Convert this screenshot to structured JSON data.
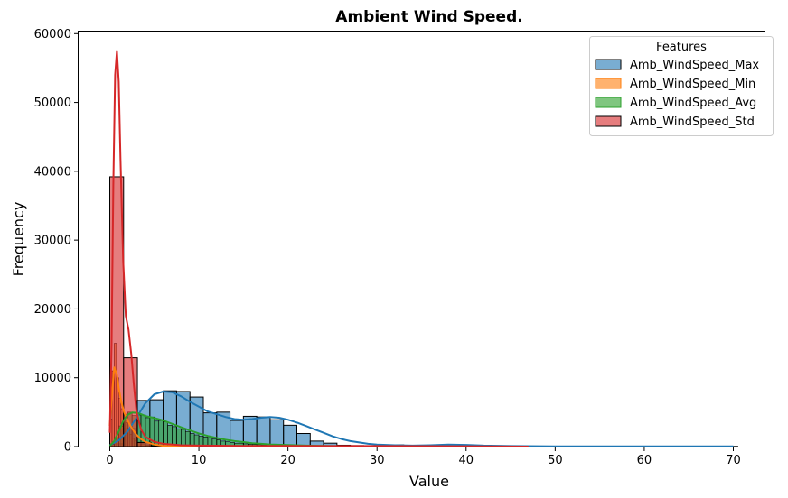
{
  "chart_data": {
    "type": "histogram",
    "title": "Ambient Wind Speed.",
    "xlabel": "Value",
    "ylabel": "Frequency",
    "xlim": [
      -3.5,
      73.5
    ],
    "ylim": [
      0,
      60300
    ],
    "xticks": [
      0,
      10,
      20,
      30,
      40,
      50,
      60,
      70
    ],
    "yticks": [
      0,
      10000,
      20000,
      30000,
      40000,
      50000,
      60000
    ],
    "grid": false,
    "legend": {
      "title": "Features",
      "placement": "top-right"
    },
    "series": [
      {
        "name": "Amb_WindSpeed_Max",
        "color": "#1f77b4",
        "bin_edges": [
          0,
          1.5,
          3.0,
          4.5,
          6.0,
          7.5,
          9.0,
          10.5,
          12.0,
          13.5,
          15.0,
          16.5,
          18.0,
          19.5,
          21.0,
          22.5,
          24.0,
          25.5,
          27.0,
          28.5,
          30.0,
          31.5,
          33.0,
          34.5,
          36.0,
          37.5,
          39.0,
          40.5,
          42.0,
          43.5,
          45.0,
          46.5,
          48.0,
          49.5,
          51.0,
          52.5,
          54.0,
          55.5,
          57.0,
          58.5,
          60.0,
          61.5,
          63.0,
          64.5,
          66.0,
          67.5,
          69.0,
          70.5
        ],
        "counts": [
          400,
          2600,
          6700,
          6800,
          8100,
          8000,
          7200,
          4900,
          5000,
          3800,
          4400,
          4300,
          3900,
          3100,
          1900,
          800,
          500,
          200,
          150,
          120,
          150,
          250,
          180,
          100,
          80,
          60,
          50,
          40,
          30,
          30,
          30,
          30,
          30,
          30,
          30,
          30,
          30,
          30,
          30,
          30,
          30,
          30,
          30,
          30,
          30,
          30,
          30
        ],
        "kde_x": [
          0,
          1,
          2,
          3,
          4,
          5,
          6,
          7,
          8,
          9,
          10,
          11,
          12,
          13,
          14,
          15,
          16,
          17,
          18,
          19,
          20,
          21,
          22,
          23,
          24,
          25,
          26,
          27,
          28,
          29,
          30,
          32,
          34,
          36,
          38,
          40,
          42,
          45,
          50,
          55,
          60,
          65,
          70
        ],
        "kde_y": [
          200,
          900,
          2200,
          4200,
          6300,
          7600,
          8000,
          7900,
          7300,
          6500,
          5800,
          5100,
          4700,
          4300,
          4000,
          3900,
          4000,
          4200,
          4300,
          4200,
          3900,
          3500,
          3000,
          2500,
          2000,
          1500,
          1100,
          800,
          600,
          400,
          300,
          200,
          150,
          200,
          300,
          250,
          150,
          80,
          40,
          30,
          30,
          30,
          30
        ]
      },
      {
        "name": "Amb_WindSpeed_Min",
        "color": "#ff7f0e",
        "bin_edges": [
          0,
          0.25,
          0.5,
          0.75,
          1.0,
          1.25,
          1.5,
          1.75,
          2.0,
          2.25,
          2.5,
          2.75,
          3.0,
          3.5,
          4.0,
          5.0,
          6.0
        ],
        "counts": [
          4000,
          11000,
          15000,
          10000,
          7000,
          5500,
          4500,
          3500,
          2500,
          1800,
          1200,
          900,
          600,
          400,
          200,
          80
        ],
        "kde_x": [
          0,
          0.2,
          0.5,
          0.8,
          1.0,
          1.3,
          1.6,
          2.0,
          2.5,
          3.0,
          3.5,
          4.0,
          5.0,
          6.0,
          8.0,
          10.0
        ],
        "kde_y": [
          3000,
          7000,
          11500,
          10500,
          8500,
          6500,
          5000,
          3800,
          2600,
          1700,
          1100,
          700,
          300,
          120,
          30,
          0
        ]
      },
      {
        "name": "Amb_WindSpeed_Avg",
        "color": "#2ca02c",
        "bin_edges": [
          0,
          0.5,
          1.0,
          1.5,
          2.0,
          2.5,
          3.0,
          3.5,
          4.0,
          4.5,
          5.0,
          5.5,
          6.0,
          6.5,
          7.0,
          7.5,
          8.0,
          8.5,
          9.0,
          9.5,
          10.0,
          10.5,
          11.0,
          11.5,
          12.0,
          12.5,
          13.0,
          13.5,
          14.0,
          14.5,
          15.0,
          15.5,
          16.0,
          16.5,
          17.0,
          17.5,
          18.0,
          18.5,
          19.0,
          19.5,
          20.0,
          21.0,
          22.0,
          23.0,
          24.0,
          25.0,
          26.0
        ],
        "counts": [
          300,
          1300,
          3000,
          4700,
          5000,
          4500,
          4600,
          4600,
          4200,
          4300,
          3700,
          3800,
          3600,
          3100,
          2900,
          2600,
          2500,
          2200,
          1900,
          1700,
          1500,
          1400,
          1300,
          1100,
          1000,
          800,
          700,
          600,
          500,
          500,
          400,
          350,
          300,
          280,
          250,
          220,
          200,
          180,
          150,
          130,
          120,
          100,
          80,
          60,
          50,
          40
        ],
        "kde_x": [
          0,
          0.5,
          1,
          1.5,
          2,
          2.5,
          3,
          3.5,
          4,
          5,
          6,
          7,
          8,
          9,
          10,
          11,
          12,
          13,
          14,
          15,
          16,
          17,
          18,
          20,
          22,
          24,
          26,
          30,
          35,
          40,
          47
        ],
        "kde_y": [
          100,
          800,
          2200,
          3700,
          4600,
          4950,
          4900,
          4700,
          4450,
          4150,
          3800,
          3300,
          2800,
          2350,
          1900,
          1550,
          1250,
          1000,
          800,
          650,
          500,
          400,
          320,
          220,
          150,
          100,
          60,
          30,
          10,
          5,
          0
        ]
      },
      {
        "name": "Amb_WindSpeed_Std",
        "color": "#d62728",
        "bin_edges": [
          0,
          1.55,
          3.1,
          4.65,
          6.2,
          7.75,
          9.3,
          10.85,
          12.4,
          13.95,
          15.5,
          17.05,
          18.6,
          20.15,
          21.7
        ],
        "counts": [
          39200,
          12900,
          600,
          100,
          40,
          20,
          10,
          10,
          10,
          10,
          10,
          10,
          10,
          10
        ],
        "kde_x": [
          0,
          0.2,
          0.4,
          0.6,
          0.8,
          1.0,
          1.2,
          1.5,
          1.8,
          2.1,
          2.4,
          2.7,
          3.0,
          3.5,
          4.0,
          5.0,
          6.0,
          8.0,
          10.0,
          15.0,
          20.0,
          30.0,
          40.0,
          47.0
        ],
        "kde_y": [
          2000,
          15000,
          38000,
          54000,
          57500,
          53000,
          42000,
          27000,
          19000,
          17000,
          13500,
          9000,
          5000,
          2500,
          1400,
          700,
          400,
          200,
          150,
          100,
          100,
          80,
          50,
          0
        ]
      }
    ]
  }
}
